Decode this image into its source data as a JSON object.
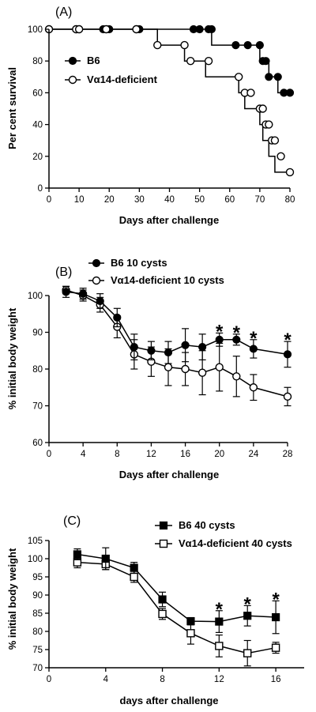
{
  "chart_data": [
    {
      "type": "line",
      "subtype": "survival-step",
      "panel_label": "(A)",
      "xlabel": "Days after challenge",
      "ylabel": "Per cent survival",
      "xlim": [
        0,
        80
      ],
      "ylim": [
        0,
        100
      ],
      "xticks": [
        "0",
        "10",
        "20",
        "30",
        "40",
        "50",
        "60",
        "70",
        "80"
      ],
      "yticks": [
        "0",
        "20",
        "40",
        "60",
        "80",
        "100"
      ],
      "legend_position": "upper-left",
      "series": [
        {
          "name": "B6",
          "marker": "filled-circle",
          "x": [
            0,
            54,
            62,
            70,
            73,
            76,
            80
          ],
          "y": [
            100,
            90,
            90,
            80,
            70,
            60,
            60
          ],
          "points_x": [
            0,
            9,
            10,
            18,
            20,
            29,
            30,
            48,
            50,
            53,
            54,
            62,
            66,
            70,
            71,
            72,
            73,
            76,
            78,
            80
          ],
          "points_y": [
            100,
            100,
            100,
            100,
            100,
            100,
            100,
            100,
            100,
            100,
            100,
            90,
            90,
            90,
            80,
            80,
            70,
            70,
            60,
            60
          ]
        },
        {
          "name": "Vα14-deficient",
          "marker": "open-circle",
          "x": [
            0,
            36,
            45,
            52,
            63,
            65,
            67,
            70,
            71,
            72,
            73,
            74,
            75,
            77
          ],
          "y": [
            100,
            90,
            80,
            70,
            60,
            50,
            50,
            40,
            30,
            30,
            20,
            20,
            10,
            10
          ],
          "points_x": [
            0,
            9,
            10,
            19,
            29,
            36,
            45,
            47,
            53,
            63,
            65,
            67,
            70,
            71,
            72,
            73,
            74,
            75,
            77,
            80
          ],
          "points_y": [
            100,
            100,
            100,
            100,
            100,
            90,
            90,
            80,
            80,
            70,
            60,
            60,
            50,
            50,
            40,
            40,
            30,
            30,
            20,
            10
          ]
        }
      ]
    },
    {
      "type": "line",
      "panel_label": "(B)",
      "xlabel": "Days after challenge",
      "ylabel": "% initial body weight",
      "xlim": [
        0,
        28
      ],
      "ylim": [
        60,
        100
      ],
      "xticks": [
        "0",
        "4",
        "8",
        "12",
        "16",
        "20",
        "24",
        "28"
      ],
      "yticks": [
        "60",
        "70",
        "80",
        "90",
        "100"
      ],
      "legend_position": "top",
      "significance": [
        {
          "x": 20,
          "label": "*"
        },
        {
          "x": 22,
          "label": "*"
        },
        {
          "x": 24,
          "label": "*"
        },
        {
          "x": 28,
          "label": "*"
        }
      ],
      "series": [
        {
          "name": "B6 10 cysts",
          "marker": "filled-circle",
          "x": [
            2,
            4,
            6,
            8,
            10,
            12,
            14,
            16,
            18,
            20,
            22,
            24,
            28
          ],
          "y": [
            101,
            100.5,
            98.5,
            94,
            86,
            85,
            84.5,
            86.5,
            86,
            88,
            88,
            85.5,
            84
          ],
          "err": [
            1.5,
            1.5,
            2,
            2.5,
            3.5,
            2.5,
            3,
            4.5,
            3.5,
            1.8,
            1.5,
            2.5,
            3.5
          ]
        },
        {
          "name": "Vα14-deficient 10 cysts",
          "marker": "open-circle",
          "x": [
            2,
            4,
            6,
            8,
            10,
            12,
            14,
            16,
            18,
            20,
            22,
            24,
            28
          ],
          "y": [
            101.5,
            100,
            97.5,
            91.5,
            84,
            82,
            80.5,
            80,
            79,
            80.5,
            78,
            75,
            72.5
          ],
          "err": [
            1,
            1.5,
            2,
            3,
            4,
            4,
            5,
            4.5,
            6,
            6.5,
            5.5,
            3.5,
            2.5
          ]
        }
      ]
    },
    {
      "type": "line",
      "panel_label": "(C)",
      "xlabel": "days after challenge",
      "ylabel": "% initial body weight",
      "xlim": [
        0,
        18
      ],
      "ylim": [
        70,
        105
      ],
      "xticks": [
        "0",
        "4",
        "8",
        "12",
        "16"
      ],
      "yticks": [
        "70",
        "75",
        "80",
        "85",
        "90",
        "95",
        "100",
        "105"
      ],
      "legend_position": "top-right",
      "significance": [
        {
          "x": 12,
          "label": "*"
        },
        {
          "x": 14,
          "label": "*"
        },
        {
          "x": 16,
          "label": "*"
        }
      ],
      "series": [
        {
          "name": "B6 40 cysts",
          "marker": "filled-square",
          "x": [
            2,
            4,
            6,
            8,
            10,
            12,
            14,
            16
          ],
          "y": [
            101.2,
            100,
            97.5,
            88.8,
            82.8,
            82.7,
            84.3,
            83.9
          ],
          "err": [
            1.5,
            3,
            1.5,
            2,
            1,
            3,
            2.8,
            4.5
          ]
        },
        {
          "name": "Vα14-deficient 40 cysts",
          "marker": "open-square",
          "x": [
            2,
            4,
            6,
            8,
            10,
            12,
            14,
            16
          ],
          "y": [
            99,
            98.5,
            95,
            84.8,
            79.5,
            76,
            74,
            75.5
          ],
          "err": [
            1.5,
            1.5,
            1.5,
            1.5,
            3,
            3,
            3.5,
            1.5
          ]
        }
      ]
    }
  ]
}
